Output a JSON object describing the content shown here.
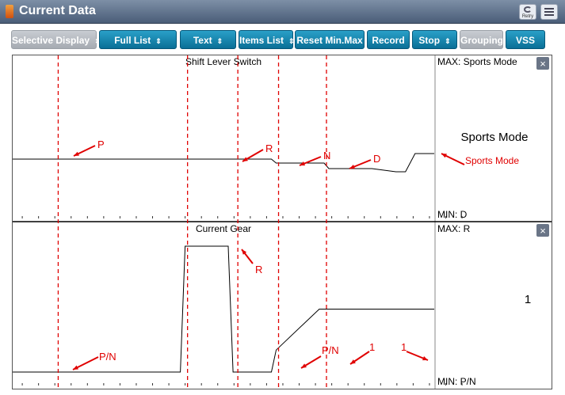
{
  "window": {
    "title": "Current Data",
    "retry_label": "Retry"
  },
  "toolbar": [
    {
      "label": "Selective Display",
      "dropdown": true,
      "enabled": false
    },
    {
      "label": "Full List",
      "dropdown": true,
      "enabled": true
    },
    {
      "label": "Text",
      "dropdown": true,
      "enabled": true
    },
    {
      "label": "Items List",
      "dropdown": true,
      "enabled": true
    },
    {
      "label": "Reset Min.Max",
      "dropdown": false,
      "enabled": true
    },
    {
      "label": "Record",
      "dropdown": false,
      "enabled": true
    },
    {
      "label": "Stop",
      "dropdown": true,
      "enabled": true
    },
    {
      "label": "Grouping",
      "dropdown": false,
      "enabled": false
    },
    {
      "label": "VSS",
      "dropdown": false,
      "enabled": true
    }
  ],
  "colors": {
    "button_active": "#0a7fa8",
    "button_disabled": "#b0b5bc",
    "annotation_red": "#e00000",
    "trace": "#000000"
  },
  "chart_data": [
    {
      "type": "line",
      "title": "Shift Lever Switch",
      "max_label": "MAX: Sports Mode",
      "min_label": "MIN: D",
      "current_value": "Sports Mode",
      "y_levels": [
        "D",
        "N",
        "R",
        "P",
        "Sports Mode"
      ],
      "x": [
        0,
        34,
        35,
        38,
        45,
        46,
        50,
        54,
        55,
        56,
        64,
        65,
        66,
        72,
        73,
        75,
        80,
        81,
        82,
        84,
        88
      ],
      "y": [
        3,
        3,
        3,
        3,
        3,
        3,
        3,
        3,
        2,
        2,
        2,
        2,
        1,
        1,
        1,
        1,
        0,
        0,
        0,
        4,
        4
      ],
      "annotations": [
        "P",
        "R",
        "N",
        "D",
        "Sports Mode"
      ]
    },
    {
      "type": "line",
      "title": "Current Gear",
      "max_label": "MAX: R",
      "min_label": "MIN: P/N",
      "current_value": "1",
      "y_levels": [
        "P/N",
        "1",
        "R"
      ],
      "x": [
        0,
        34,
        35,
        36,
        44,
        45,
        46,
        53,
        54,
        55,
        64,
        65,
        88
      ],
      "y": [
        0,
        0,
        0,
        2,
        2,
        2,
        0,
        0,
        0,
        0.35,
        1,
        1,
        1
      ],
      "annotations": [
        "P/N",
        "R",
        "P/N",
        "1",
        "1"
      ]
    }
  ],
  "markers": {
    "x": [
      9.5,
      36.5,
      47,
      55.5,
      65.5
    ]
  }
}
